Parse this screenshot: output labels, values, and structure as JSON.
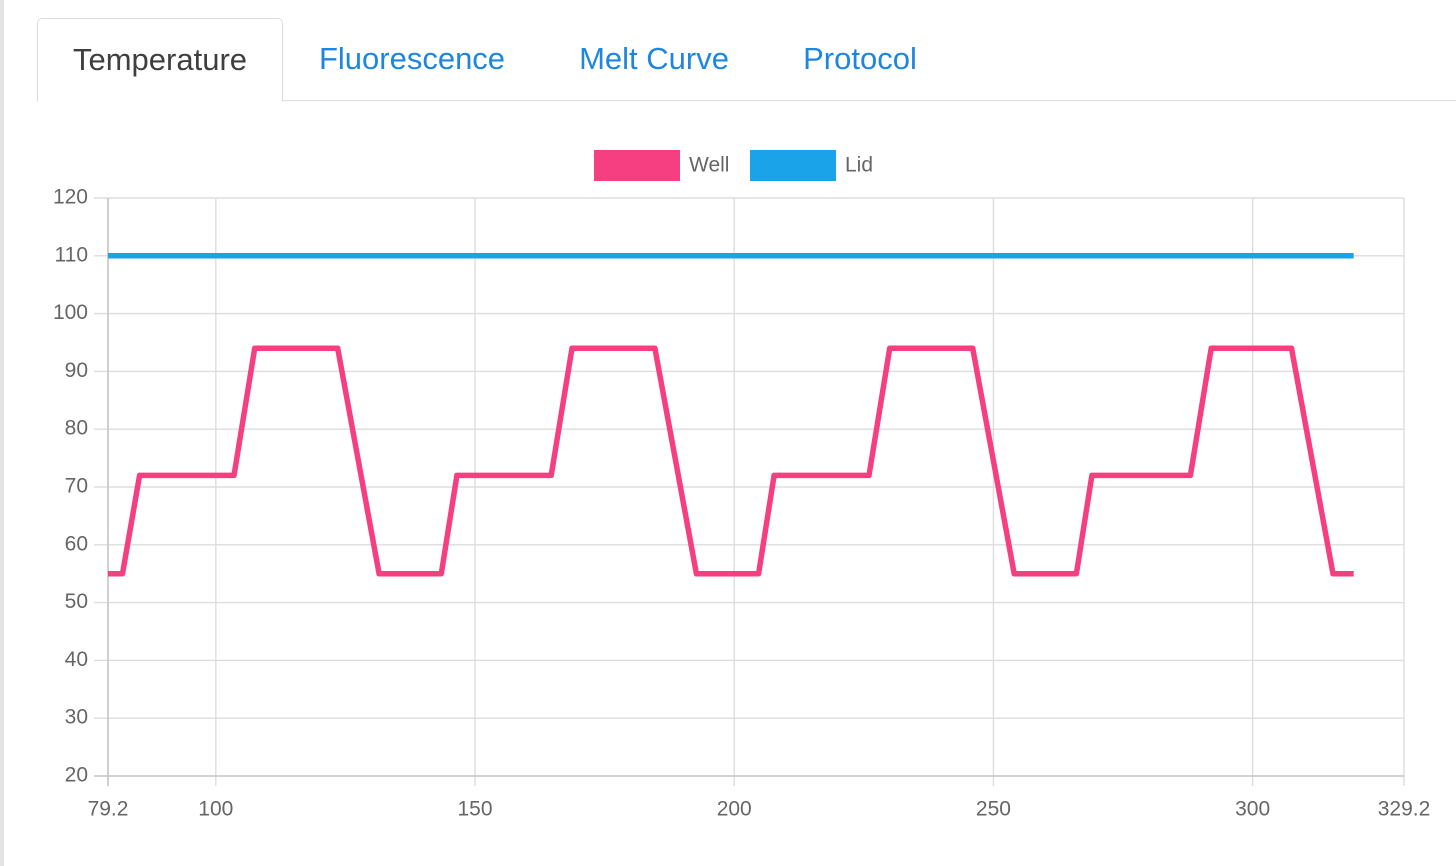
{
  "tabs": [
    {
      "label": "Temperature",
      "active": true
    },
    {
      "label": "Fluorescence",
      "active": false
    },
    {
      "label": "Melt Curve",
      "active": false
    },
    {
      "label": "Protocol",
      "active": false
    }
  ],
  "chart_data": {
    "type": "line",
    "title": "",
    "xlabel": "",
    "ylabel": "",
    "xlim": [
      79.2,
      329.2
    ],
    "ylim": [
      20,
      120
    ],
    "x_ticks": [
      "79.2",
      "100",
      "150",
      "200",
      "250",
      "300",
      "329.2"
    ],
    "y_ticks": [
      "120",
      "110",
      "100",
      "90",
      "80",
      "70",
      "60",
      "50",
      "40",
      "30",
      "20"
    ],
    "grid": true,
    "legend_position": "top-center",
    "series": [
      {
        "name": "Well",
        "color": "#f63f80",
        "x": [
          79.2,
          82,
          85.3,
          103.5,
          107.5,
          123.5,
          131.5,
          143.5,
          146.5,
          164.7,
          168.7,
          184.7,
          192.7,
          204.7,
          207.7,
          226,
          230,
          246,
          254,
          266,
          269,
          288,
          292,
          307.5,
          315.5,
          319.5
        ],
        "y": [
          55,
          55,
          72,
          72,
          94,
          94,
          55,
          55,
          72,
          72,
          94,
          94,
          55,
          55,
          72,
          72,
          94,
          94,
          55,
          55,
          72,
          72,
          94,
          94,
          55,
          55
        ]
      },
      {
        "name": "Lid",
        "color": "#1aa3e8",
        "x": [
          79.2,
          319.5
        ],
        "y": [
          110,
          110
        ]
      }
    ]
  }
}
